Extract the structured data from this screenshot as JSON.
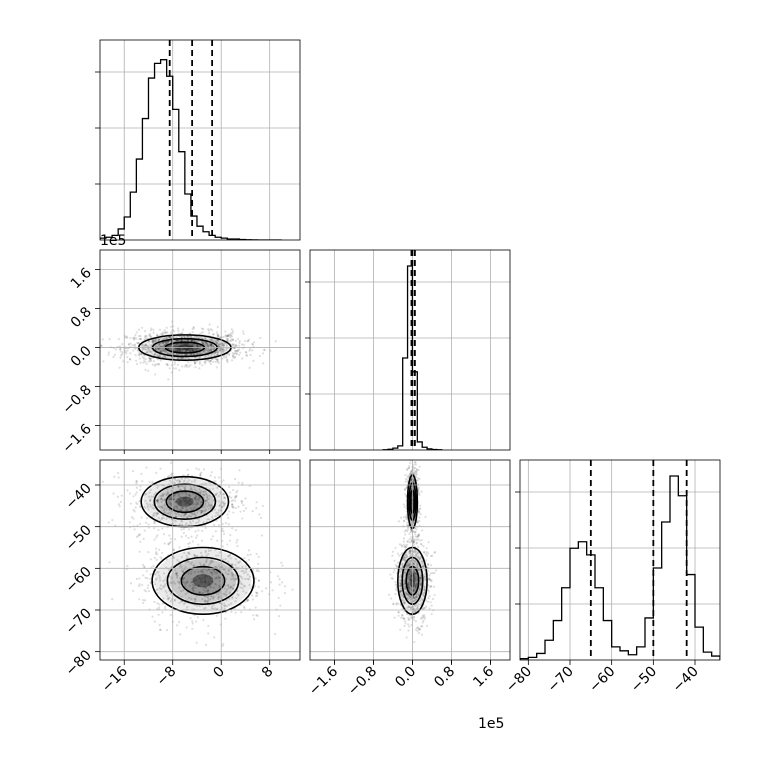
{
  "chart_data": {
    "type": "corner",
    "title": "",
    "parameters": [
      {
        "index": 0,
        "range": [
          -20,
          13
        ],
        "ticks": [
          -16,
          -8,
          0,
          8
        ],
        "tick_labels": [
          "−16",
          "−8",
          "0",
          "8"
        ],
        "offset_text": "1e5",
        "hist": {
          "edges": [
            -20,
            -19,
            -18,
            -17,
            -16,
            -15,
            -14,
            -13,
            -12,
            -11,
            -10,
            -9,
            -8,
            -7,
            -6,
            -5,
            -4,
            -3,
            -2,
            -1,
            0,
            1,
            2,
            3,
            4,
            5,
            6,
            7,
            8,
            9,
            10
          ],
          "counts": [
            0.2,
            0.3,
            0.5,
            1.2,
            2.5,
            5.2,
            8.8,
            13.2,
            17.6,
            19.2,
            19.6,
            17.8,
            14.2,
            9.6,
            5.0,
            2.6,
            1.5,
            0.9,
            0.5,
            0.3,
            0.2,
            0.1,
            0.1,
            0.05,
            0.02,
            0.01,
            0,
            0,
            0,
            0
          ]
        },
        "quantiles": [
          -8.5,
          -4.8,
          -1.5
        ],
        "ylim": [
          0,
          20
        ]
      },
      {
        "index": 1,
        "range": [
          -2.1,
          2.0
        ],
        "ticks": [
          -1.6,
          -0.8,
          0.0,
          0.8,
          1.6
        ],
        "tick_labels": [
          "−1.6",
          "−0.8",
          "0.0",
          "0.8",
          "1.6"
        ],
        "offset_text": "1e5",
        "hist": {
          "edges": [
            -0.6,
            -0.5,
            -0.4,
            -0.3,
            -0.2,
            -0.1,
            0.0,
            0.1,
            0.2,
            0.3,
            0.4,
            0.5,
            0.6
          ],
          "counts": [
            0.1,
            0.3,
            0.8,
            1.8,
            40,
            80,
            34,
            3.5,
            1.2,
            0.5,
            0.2,
            0.1
          ]
        },
        "quantiles": [
          -0.02,
          0.0,
          0.05
        ],
        "ylim": [
          0,
          80
        ]
      },
      {
        "index": 2,
        "range": [
          -82,
          -34
        ],
        "ticks": [
          -80,
          -70,
          -60,
          -50,
          -40
        ],
        "tick_labels": [
          "−80",
          "−70",
          "−60",
          "−50",
          "−40"
        ],
        "offset_text": "",
        "hist": {
          "edges": [
            -82,
            -80,
            -78,
            -76,
            -74,
            -72,
            -70,
            -68,
            -66,
            -64,
            -62,
            -60,
            -58,
            -56,
            -54,
            -52,
            -50,
            -48,
            -46,
            -44,
            -42,
            -40,
            -38,
            -36,
            -34
          ],
          "counts": [
            0.1,
            0.2,
            0.5,
            1.5,
            3.0,
            5.5,
            8.5,
            9.0,
            8.0,
            5.5,
            3.0,
            1.0,
            0.7,
            0.4,
            1.0,
            3.2,
            7.0,
            10.5,
            14.0,
            12.5,
            6.5,
            2.5,
            0.6,
            0.3
          ]
        },
        "quantiles": [
          -65,
          -50,
          -42
        ],
        "ylim": [
          0,
          14
        ]
      }
    ],
    "pairs": [
      {
        "x": 0,
        "y": 1,
        "modes": [
          {
            "cx": -6,
            "cy": 0.0,
            "sx": 3.8,
            "sy": 0.13,
            "weight": 1.0
          }
        ]
      },
      {
        "x": 0,
        "y": 2,
        "modes": [
          {
            "cx": -6,
            "cy": -44,
            "sx": 3.6,
            "sy": 3.0,
            "weight": 0.5
          },
          {
            "cx": -3,
            "cy": -63,
            "sx": 4.2,
            "sy": 4.0,
            "weight": 0.5
          }
        ]
      },
      {
        "x": 1,
        "y": 2,
        "modes": [
          {
            "cx": 0.0,
            "cy": -44,
            "sx": 0.05,
            "sy": 3.2,
            "weight": 0.5
          },
          {
            "cx": 0.0,
            "cy": -63,
            "sx": 0.15,
            "sy": 4.0,
            "weight": 0.5
          }
        ]
      }
    ],
    "grid": true,
    "legend": "none"
  }
}
